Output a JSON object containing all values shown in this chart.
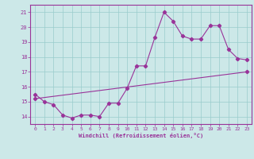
{
  "xlabel": "Windchill (Refroidissement éolien,°C)",
  "xlim": [
    -0.5,
    23.5
  ],
  "ylim": [
    13.5,
    21.5
  ],
  "yticks": [
    14,
    15,
    16,
    17,
    18,
    19,
    20,
    21
  ],
  "xticks": [
    0,
    1,
    2,
    3,
    4,
    5,
    6,
    7,
    8,
    9,
    10,
    11,
    12,
    13,
    14,
    15,
    16,
    17,
    18,
    19,
    20,
    21,
    22,
    23
  ],
  "bg_color": "#cce8e8",
  "line_color": "#993399",
  "grid_color": "#99cccc",
  "line1_x": [
    0,
    1,
    2,
    3,
    4,
    5,
    6,
    7,
    8,
    9,
    10,
    11,
    12,
    13,
    14,
    15,
    16,
    17,
    18,
    19,
    20,
    21,
    22,
    23
  ],
  "line1_y": [
    15.5,
    15.0,
    14.8,
    14.1,
    13.9,
    14.1,
    14.1,
    14.0,
    14.9,
    14.9,
    15.9,
    17.4,
    17.4,
    19.3,
    21.0,
    20.4,
    19.4,
    19.2,
    19.2,
    20.1,
    20.1,
    18.5,
    17.9,
    17.8
  ],
  "line2_x": [
    0,
    23
  ],
  "line2_y": [
    15.2,
    17.0
  ]
}
